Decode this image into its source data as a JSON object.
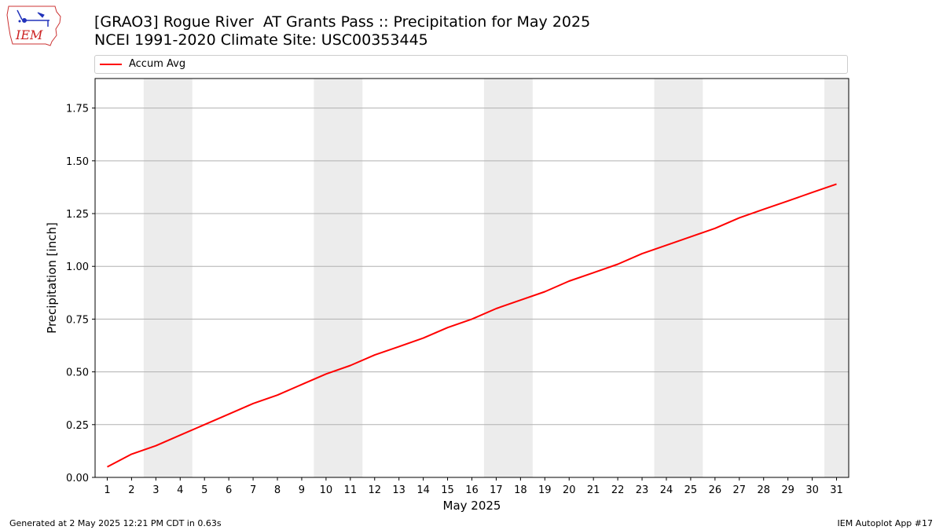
{
  "header": {
    "title_line1": "[GRAO3] Rogue River  AT Grants Pass :: Precipitation for May 2025",
    "title_line2": "NCEI 1991-2020 Climate Site: USC00353445"
  },
  "logo": {
    "text": "IEM",
    "icon": "iowa-state-outline-logo"
  },
  "legend": {
    "items": [
      {
        "label": "Accum Avg",
        "color": "#ff0000"
      }
    ]
  },
  "chart_data": {
    "type": "line",
    "xlabel": "May 2025",
    "ylabel": "Precipitation [inch]",
    "xlim": [
      0.5,
      31.5
    ],
    "ylim": [
      0,
      1.89
    ],
    "x": [
      1,
      2,
      3,
      4,
      5,
      6,
      7,
      8,
      9,
      10,
      11,
      12,
      13,
      14,
      15,
      16,
      17,
      18,
      19,
      20,
      21,
      22,
      23,
      24,
      25,
      26,
      27,
      28,
      29,
      30,
      31
    ],
    "yticks": [
      "0.00",
      "0.25",
      "0.50",
      "0.75",
      "1.00",
      "1.25",
      "1.50",
      "1.75"
    ],
    "ytick_values": [
      0,
      0.25,
      0.5,
      0.75,
      1.0,
      1.25,
      1.5,
      1.75
    ],
    "grid": "horizontal",
    "weekend_shading": [
      [
        2.5,
        4.5
      ],
      [
        9.5,
        11.5
      ],
      [
        16.5,
        18.5
      ],
      [
        23.5,
        25.5
      ],
      [
        30.5,
        31.5
      ]
    ],
    "shade_color": "#ececec",
    "legend_position": "top",
    "series": [
      {
        "name": "Accum Avg",
        "color": "#ff0000",
        "values": [
          0.05,
          0.11,
          0.15,
          0.2,
          0.25,
          0.3,
          0.35,
          0.39,
          0.44,
          0.49,
          0.53,
          0.58,
          0.62,
          0.66,
          0.71,
          0.75,
          0.8,
          0.84,
          0.88,
          0.93,
          0.97,
          1.01,
          1.06,
          1.1,
          1.14,
          1.18,
          1.23,
          1.27,
          1.31,
          1.35,
          1.39
        ]
      }
    ]
  },
  "footer": {
    "left": "Generated at 2 May 2025 12:21 PM CDT in 0.63s",
    "right": "IEM Autoplot App #17"
  }
}
